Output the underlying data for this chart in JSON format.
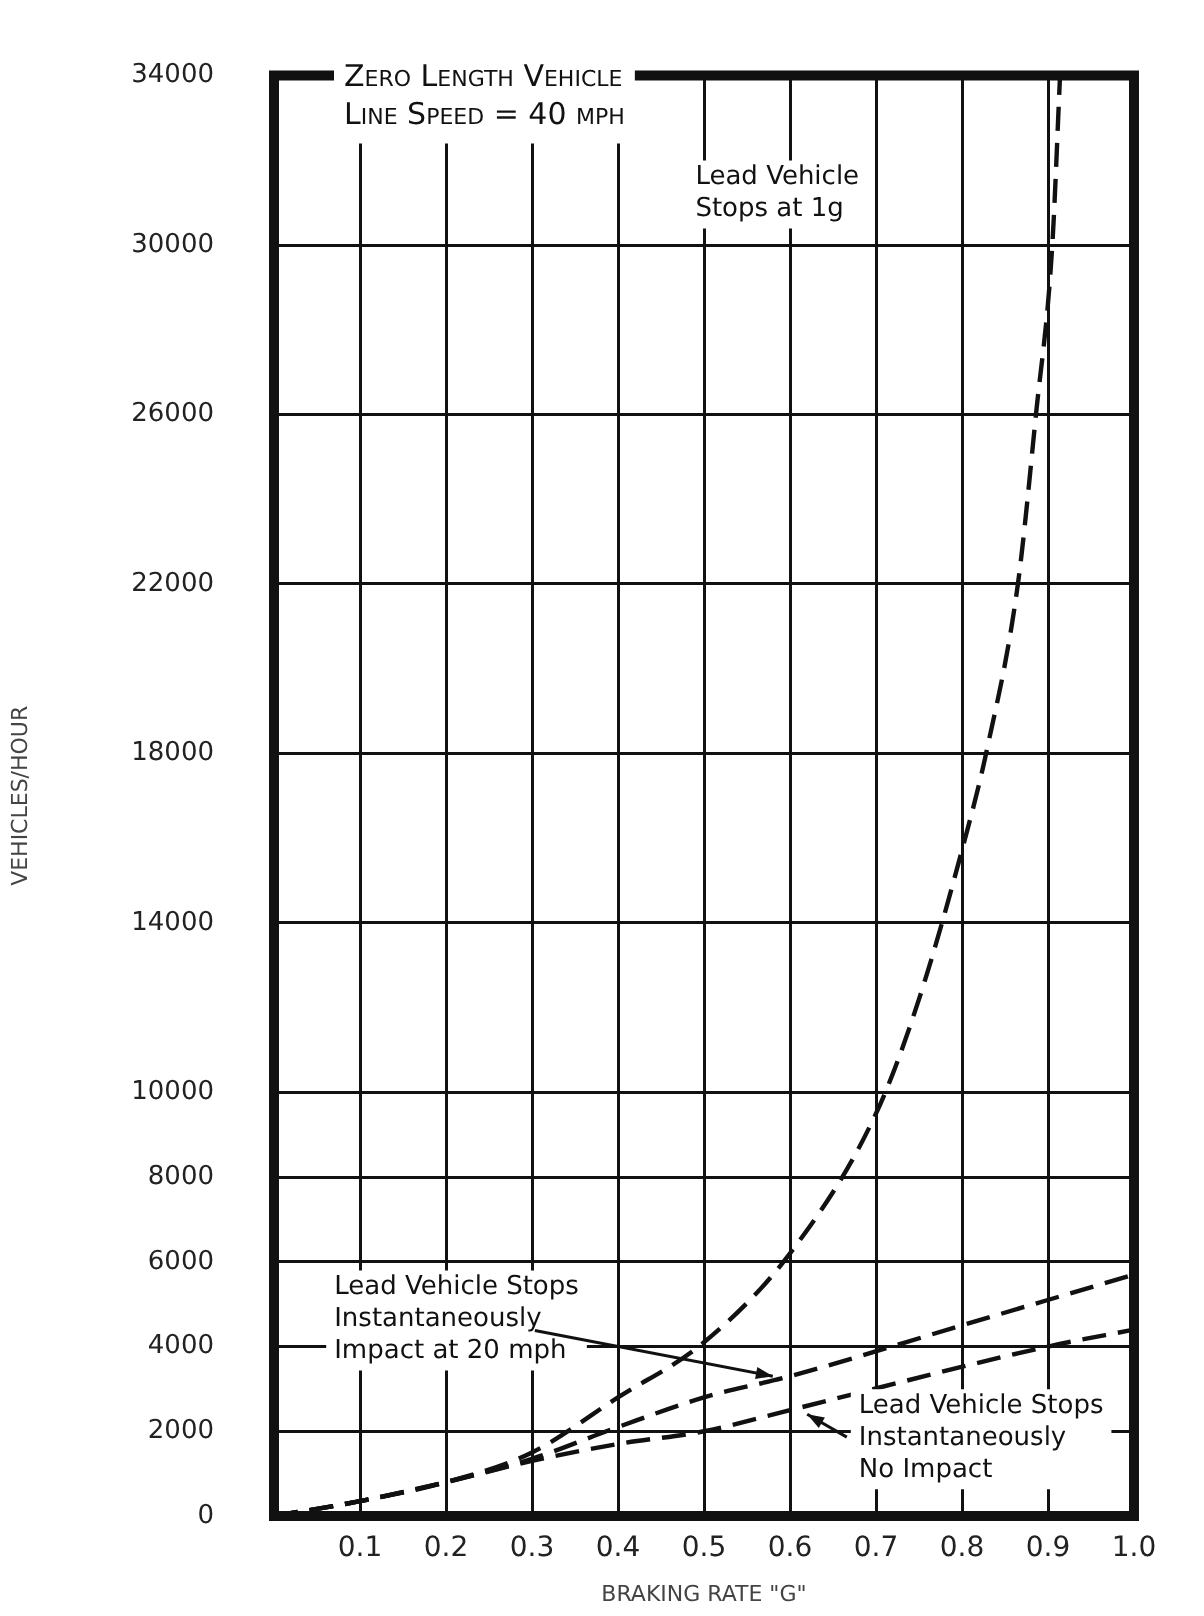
{
  "chart_data": {
    "type": "line",
    "title": "Zero Length Vehicle",
    "subtitle": "Line Speed = 40 mph",
    "xlabel": "BRAKING RATE \"G\"",
    "ylabel": "VEHICLES/HOUR",
    "xlim": [
      0,
      1.0
    ],
    "xticks": [
      {
        "value": 0,
        "label": null
      },
      0.1,
      0.2,
      0.3,
      0.4,
      0.5,
      0.6,
      0.7,
      0.8,
      0.9,
      {
        "value": 1.0,
        "label": "1.0"
      }
    ],
    "ylim": [
      0,
      34000
    ],
    "yticks": [
      0,
      2000,
      4000,
      6000,
      8000,
      10000,
      14000,
      18000,
      22000,
      26000,
      30000,
      34000
    ],
    "grid": true,
    "legend": false,
    "marker": "none",
    "series": [
      {
        "color": "#111111",
        "line_style": "dashed",
        "x": [
          0,
          0.1,
          0.2,
          0.3,
          0.4,
          0.5,
          0.6,
          0.7,
          0.75,
          0.805,
          0.828,
          0.865,
          0.886,
          0.905,
          0.914
        ],
        "values": [
          0,
          350,
          800,
          1500,
          2800,
          4100,
          6200,
          9500,
          12200,
          16100,
          18000,
          22000,
          26000,
          30000,
          34000
        ]
      },
      {
        "color": "#111111",
        "line_style": "dashed",
        "x": [
          0,
          0.1,
          0.2,
          0.3,
          0.4,
          0.5,
          0.6,
          0.8,
          1.0
        ],
        "values": [
          0,
          350,
          800,
          1350,
          2100,
          2800,
          3300,
          4500,
          5700
        ]
      },
      {
        "color": "#111111",
        "line_style": "dashed",
        "x": [
          0,
          0.1,
          0.2,
          0.3,
          0.4,
          0.5,
          0.6,
          0.9,
          1.0
        ],
        "values": [
          0,
          350,
          800,
          1300,
          1700,
          2000,
          2500,
          4000,
          4400
        ]
      }
    ],
    "annotations": [
      "Lead Vehicle\nStops at 1g",
      {
        "text": "Lead Vehicle Stops\nInstantaneously\nImpact at 20 mph",
        "x": 0.58,
        "y": 3300
      },
      {
        "text": "Lead Vehicle Stops\nInstantaneously\nNo Impact",
        "x": 0.62,
        "y": 2400
      }
    ]
  }
}
